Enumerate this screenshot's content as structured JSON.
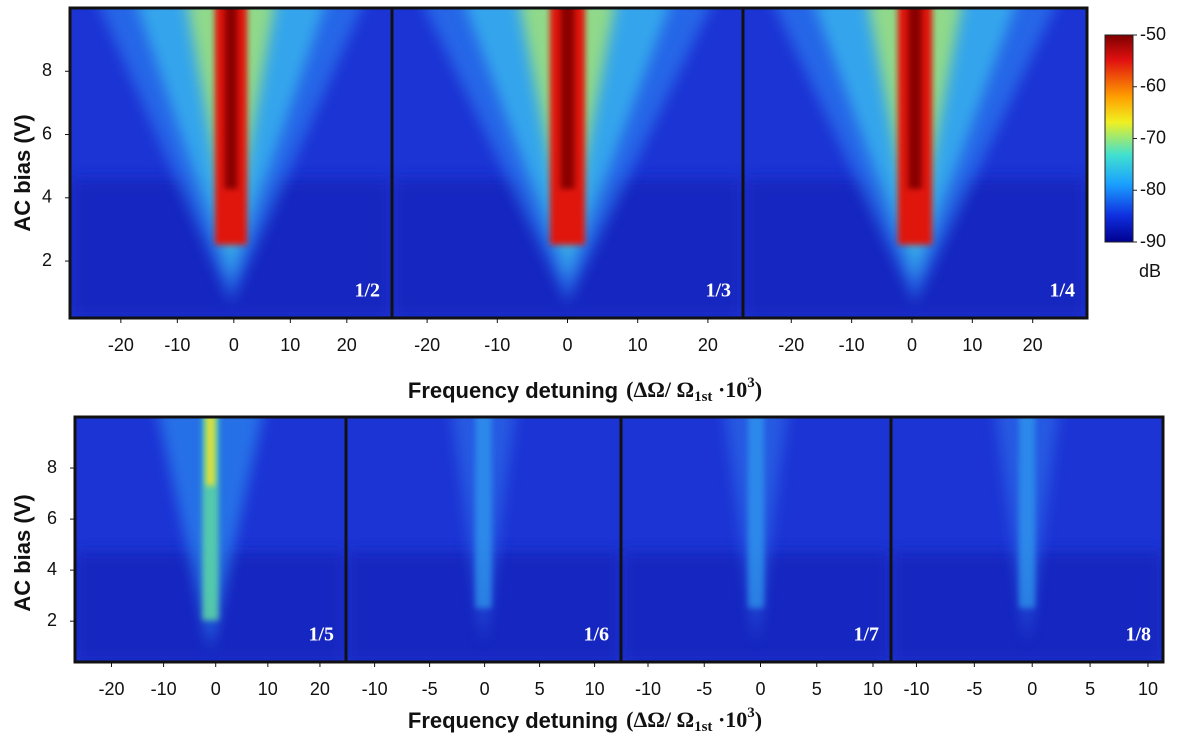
{
  "chart_data": [
    {
      "type": "heatmap",
      "annotation": "1/2",
      "xlim": [
        -29,
        28
      ],
      "xticks": [
        -20,
        -10,
        0,
        10,
        20
      ],
      "ylim": [
        0.2,
        10
      ],
      "yticks": [
        2,
        4,
        6,
        8
      ]
    },
    {
      "type": "heatmap",
      "annotation": "1/3",
      "xlim": [
        -25,
        25
      ],
      "xticks": [
        -20,
        -10,
        0,
        10,
        20
      ],
      "ylim": [
        0.2,
        10
      ]
    },
    {
      "type": "heatmap",
      "annotation": "1/4",
      "xlim": [
        -28,
        29
      ],
      "xticks": [
        -20,
        -10,
        0,
        10,
        20
      ],
      "ylim": [
        0.2,
        10
      ]
    },
    {
      "type": "heatmap",
      "annotation": "1/5",
      "xlim": [
        -27,
        25
      ],
      "xticks": [
        -20,
        -10,
        0,
        10,
        20
      ],
      "ylim": [
        0.4,
        10
      ],
      "yticks": [
        2,
        4,
        6,
        8
      ]
    },
    {
      "type": "heatmap",
      "annotation": "1/6",
      "xlim": [
        -12.6,
        12.4
      ],
      "xticks": [
        -10,
        -5,
        0,
        5,
        10
      ],
      "ylim": [
        0.4,
        10
      ]
    },
    {
      "type": "heatmap",
      "annotation": "1/7",
      "xlim": [
        -12.4,
        11.6
      ],
      "xticks": [
        -10,
        -5,
        0,
        5,
        10
      ],
      "ylim": [
        0.4,
        10
      ]
    },
    {
      "type": "heatmap",
      "annotation": "1/8",
      "xlim": [
        -12.2,
        11.3
      ],
      "xticks": [
        -10,
        -5,
        0,
        5,
        10
      ],
      "ylim": [
        0.4,
        10
      ]
    }
  ],
  "rows": [
    {
      "ylabel": "AC bias (V)",
      "xlabel": "Frequency detuning",
      "xlabel_math": [
        "(ΔΩ/ Ω",
        "1st",
        " ·10",
        "3",
        ")"
      ]
    },
    {
      "ylabel": "AC bias (V)",
      "xlabel": "Frequency detuning",
      "xlabel_math": [
        "(ΔΩ/ Ω",
        "1st",
        " ·10",
        "3",
        ")"
      ]
    }
  ],
  "colorbar": {
    "ylim": [
      -90,
      -50
    ],
    "yticks": [
      -90,
      -80,
      -70,
      -60,
      -50
    ],
    "label": "dB"
  }
}
